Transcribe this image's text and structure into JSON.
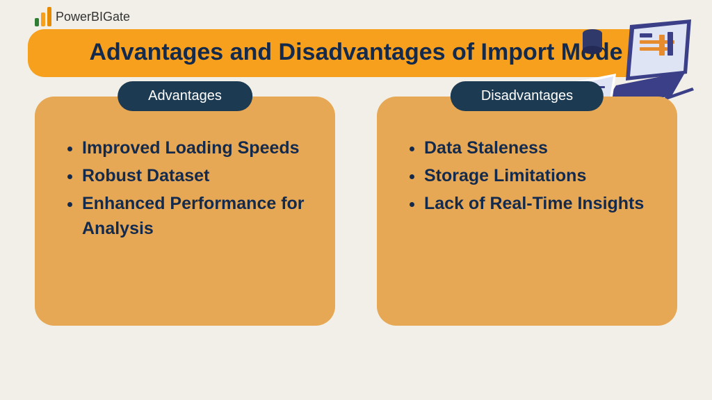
{
  "colors": {
    "page_bg": "#f1efe7",
    "title_bg": "#f6a01d",
    "title_text": "#142a4d",
    "label_bg": "#1c3a52",
    "label_text": "#ffffff",
    "card_bg": "#e7a855",
    "card_text": "#142a4d",
    "brand_text": "#333333",
    "brand_bar1": "#2e7d32",
    "brand_bar2": "#f6a01d",
    "brand_bar3": "#e68a00",
    "laptop_body": "#3b3f87",
    "laptop_screen": "#dfe4f5",
    "laptop_accent": "#e78b2f",
    "cup": "#2f3a6b"
  },
  "typography": {
    "title_fontsize": 34,
    "list_fontsize": 25,
    "brand_fontsize": 18,
    "label_fontsize": 20
  },
  "brand": {
    "name": "PowerBIGate"
  },
  "title": "Advantages and Disadvantages of Import Mode",
  "left": {
    "label": "Advantages",
    "items": [
      "Improved Loading Speeds",
      "Robust Dataset",
      "Enhanced Performance for Analysis"
    ]
  },
  "right": {
    "label": "Disadvantages",
    "items": [
      "Data Staleness",
      " Storage Limitations",
      "Lack of Real-Time Insights"
    ]
  }
}
